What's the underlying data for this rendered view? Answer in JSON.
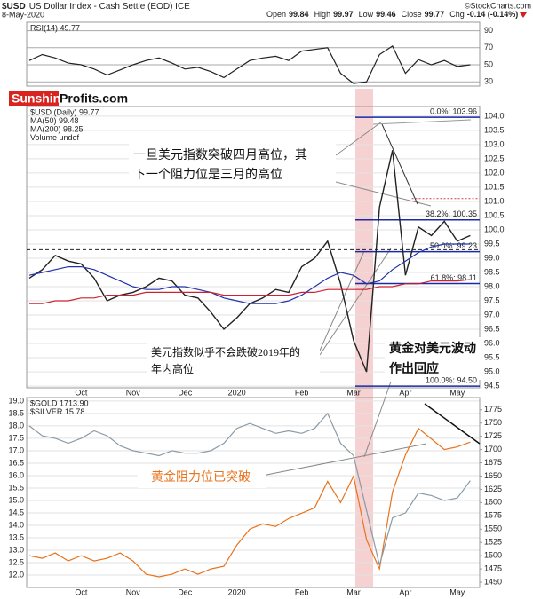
{
  "header": {
    "symbol": "$USD",
    "title": "US Dollar Index - Cash Settle (EOD) ICE",
    "date": "8-May-2020",
    "source": "©StockCharts.com",
    "quote": [
      {
        "label": "Open",
        "value": 99.84
      },
      {
        "label": "High",
        "value": 99.97
      },
      {
        "label": "Low",
        "value": 99.46
      },
      {
        "label": "Close",
        "value": 99.77
      },
      {
        "label": "Chg",
        "value": "-0.14 (-0.14%)"
      }
    ]
  },
  "logo": {
    "part1": "Sunshine",
    "part2": "Profits.com"
  },
  "annotations": [
    {
      "lines": [
        "一旦美元指数突破四月高位，其",
        "下一个阻力位是三月的高位"
      ]
    },
    {
      "lines": [
        "美元指数似乎不会跌破2019年的",
        "年内高位"
      ]
    },
    {
      "lines": [
        "黄金对美元波动",
        "作出回应"
      ]
    },
    {
      "lines": [
        "黄金阻力位已突破"
      ]
    }
  ],
  "chart_data": [
    {
      "type": "line",
      "ylim": [
        25,
        100
      ],
      "yticks": [
        30,
        50,
        70,
        90
      ],
      "grid": true,
      "series": [
        {
          "name": "RSI(14) 49.77",
          "color": "#222222",
          "values": [
            55,
            62,
            58,
            52,
            50,
            45,
            38,
            44,
            50,
            55,
            58,
            52,
            45,
            47,
            42,
            35,
            45,
            55,
            58,
            60,
            55,
            66,
            68,
            70,
            40,
            28,
            30,
            62,
            72,
            40,
            56,
            50,
            55,
            48,
            50
          ]
        }
      ]
    },
    {
      "type": "line",
      "ylim": [
        94.44,
        104.34
      ],
      "yticks": [
        94.5,
        {
          "value": 95,
          "label": "95.0"
        },
        95.5,
        {
          "value": 96,
          "label": "96.0"
        },
        96.5,
        {
          "value": 97,
          "label": "97.0"
        },
        97.5,
        {
          "value": 98,
          "label": "98.0"
        },
        98.5,
        {
          "value": 99,
          "label": "99.0"
        },
        99.5,
        {
          "value": 100,
          "label": "100.0"
        },
        100.5,
        {
          "value": 101,
          "label": "101.0"
        },
        101.5,
        {
          "value": 102,
          "label": "102.0"
        },
        102.5,
        {
          "value": 103,
          "label": "103.0"
        },
        103.5,
        {
          "value": 104,
          "label": "104.0"
        }
      ],
      "grid": true,
      "categories": [
        null,
        null,
        null,
        null,
        "Oct",
        null,
        null,
        null,
        "Nov",
        null,
        null,
        null,
        "Dec",
        null,
        null,
        null,
        "2020",
        null,
        null,
        null,
        null,
        "Feb",
        null,
        null,
        null,
        "Mar",
        null,
        null,
        null,
        "Apr",
        null,
        null,
        null,
        "May",
        null
      ],
      "series": [
        {
          "name": "$USD (Daily) 99.77",
          "color": "#222222",
          "values": [
            98.3,
            98.6,
            99.1,
            98.9,
            98.8,
            98.3,
            97.5,
            97.7,
            97.8,
            98.0,
            98.3,
            98.2,
            97.7,
            97.6,
            97.1,
            96.5,
            96.9,
            97.4,
            97.6,
            97.9,
            97.8,
            98.7,
            99.0,
            99.6,
            98.1,
            96.1,
            95.0,
            100.8,
            102.8,
            98.4,
            100.1,
            99.8,
            100.3,
            99.6,
            99.8
          ]
        },
        {
          "name": "MA(50) 99.48",
          "color": "#2233aa",
          "values": [
            98.4,
            98.5,
            98.6,
            98.7,
            98.7,
            98.6,
            98.4,
            98.2,
            98.0,
            97.9,
            97.9,
            98.0,
            98.0,
            97.9,
            97.8,
            97.6,
            97.5,
            97.4,
            97.4,
            97.4,
            97.5,
            97.7,
            98.0,
            98.3,
            98.5,
            98.4,
            98.1,
            98.2,
            98.6,
            98.9,
            99.2,
            99.4,
            99.5,
            99.5,
            99.5
          ]
        },
        {
          "name": "MA(200) 98.25",
          "color": "#cc2233",
          "values": [
            97.4,
            97.4,
            97.5,
            97.5,
            97.6,
            97.6,
            97.7,
            97.7,
            97.7,
            97.8,
            97.8,
            97.8,
            97.8,
            97.8,
            97.8,
            97.7,
            97.7,
            97.7,
            97.7,
            97.7,
            97.7,
            97.8,
            97.8,
            97.9,
            97.9,
            97.9,
            97.9,
            98.0,
            98.0,
            98.1,
            98.1,
            98.2,
            98.2,
            98.2,
            98.25
          ]
        }
      ],
      "notes": [
        "Volume undef"
      ],
      "level_color": "#1a2aa8",
      "levels": [
        {
          "label": "0.0%: 103.96",
          "value": 103.96
        },
        {
          "label": "38.2%: 100.35",
          "value": 100.35
        },
        {
          "label": "50.0%: 99.23",
          "value": 99.23
        },
        {
          "label": "61.8%: 98.11",
          "value": 98.11
        },
        {
          "label": "100.0%: 94.50",
          "value": 94.5
        }
      ],
      "hlines": [
        {
          "value": 99.3,
          "style": "dashed",
          "color": "#222222"
        },
        {
          "value": 101.1,
          "style": "dotted",
          "color": "#d04040"
        }
      ]
    },
    {
      "type": "line",
      "ylim": [
        11.5,
        19.14
      ],
      "yticks": [
        {
          "value": 12,
          "label": "12.0"
        },
        12.5,
        {
          "value": 13,
          "label": "13.0"
        },
        13.5,
        {
          "value": 14,
          "label": "14.0"
        },
        14.5,
        {
          "value": 15,
          "label": "15.0"
        },
        15.5,
        {
          "value": 16,
          "label": "16.0"
        },
        16.5,
        {
          "value": 17,
          "label": "17.0"
        },
        17.5,
        {
          "value": 18,
          "label": "18.0"
        },
        18.5,
        {
          "value": 19,
          "label": "19.0"
        }
      ],
      "y2lim": [
        1440,
        1798
      ],
      "y2ticks": [
        1450,
        1475,
        1500,
        1525,
        1550,
        1575,
        1600,
        1625,
        1650,
        1675,
        1700,
        1725,
        1750,
        1775
      ],
      "grid": true,
      "categories": [
        null,
        null,
        null,
        null,
        "Oct",
        null,
        null,
        null,
        "Nov",
        null,
        null,
        null,
        "Dec",
        null,
        null,
        null,
        "2020",
        null,
        null,
        null,
        null,
        "Feb",
        null,
        null,
        null,
        "Mar",
        null,
        null,
        null,
        "Apr",
        null,
        null,
        null,
        "May",
        null
      ],
      "series": [
        {
          "name": "$GOLD 1713.90",
          "color": "#e8731c",
          "axis": "y2",
          "values": [
            1500,
            1495,
            1505,
            1490,
            1500,
            1490,
            1495,
            1505,
            1490,
            1465,
            1460,
            1465,
            1475,
            1465,
            1475,
            1480,
            1520,
            1550,
            1560,
            1555,
            1570,
            1580,
            1590,
            1640,
            1600,
            1650,
            1530,
            1475,
            1620,
            1690,
            1740,
            1720,
            1700,
            1705,
            1714
          ]
        },
        {
          "name": "$SILVER 15.78",
          "color": "#8a9aa6",
          "values": [
            18.0,
            17.6,
            17.5,
            17.3,
            17.5,
            17.8,
            17.6,
            17.2,
            17.0,
            16.9,
            16.8,
            17.0,
            16.9,
            16.9,
            17.0,
            17.3,
            17.9,
            18.1,
            17.9,
            17.7,
            17.8,
            17.7,
            17.9,
            18.5,
            17.3,
            16.8,
            14.6,
            12.4,
            14.3,
            14.5,
            15.3,
            15.2,
            15.0,
            15.1,
            15.8
          ]
        }
      ]
    }
  ]
}
